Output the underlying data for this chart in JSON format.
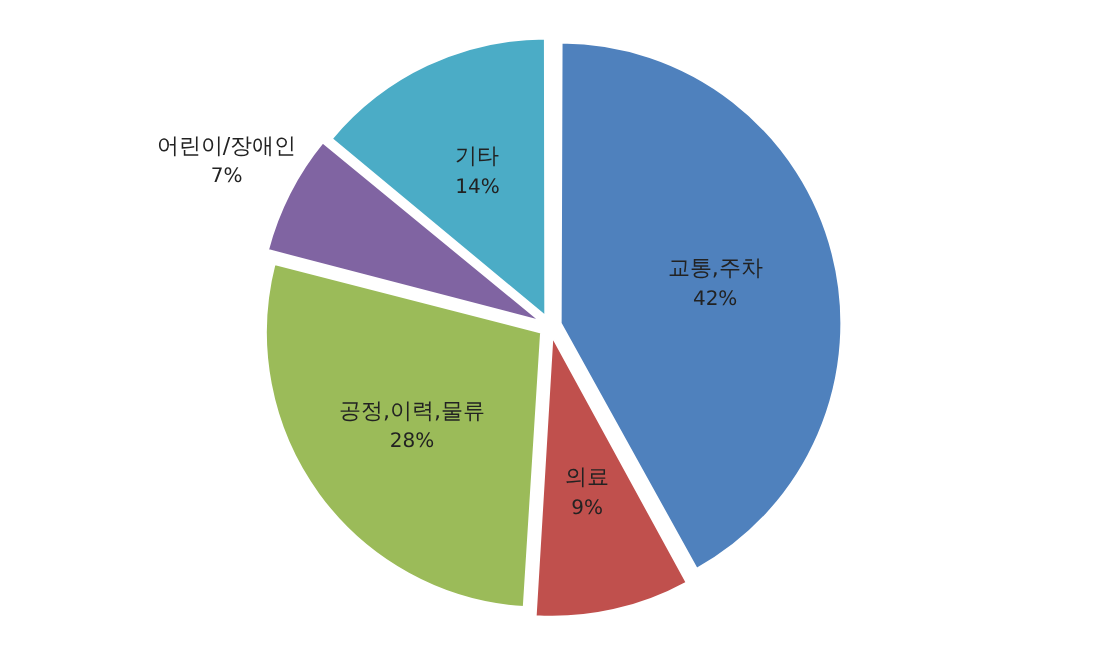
{
  "chart_data": {
    "type": "pie",
    "categories": [
      "교통,주차",
      "의료",
      "공정,이력,물류",
      "어린이/장애인",
      "기타"
    ],
    "values": [
      42,
      9,
      28,
      7,
      14
    ],
    "value_labels": [
      "42%",
      "9%",
      "28%",
      "7%",
      "14%"
    ],
    "colors": [
      "#4f81bd",
      "#c0504d",
      "#9bbb59",
      "#8064a2",
      "#4bacc6"
    ],
    "legend": false
  }
}
